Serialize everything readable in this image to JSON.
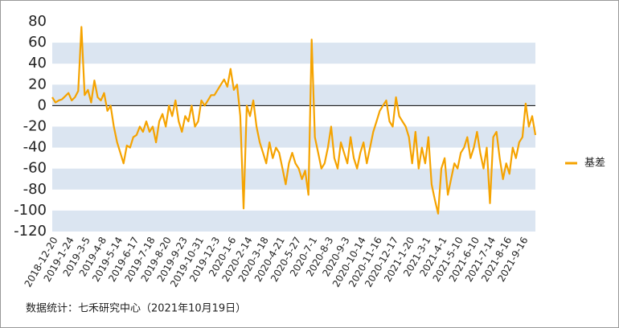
{
  "chart_data": {
    "type": "line",
    "categories": [
      "2018-12-20",
      null,
      null,
      null,
      null,
      "2019-1-24",
      null,
      null,
      null,
      null,
      "2019-3-5",
      null,
      null,
      null,
      null,
      "2019-4-8",
      null,
      null,
      null,
      null,
      "2019-5-14",
      null,
      null,
      null,
      null,
      "2019-6-17",
      null,
      null,
      null,
      null,
      "2019-7-18",
      null,
      null,
      null,
      null,
      "2019-8-20",
      null,
      null,
      null,
      null,
      "2019-9-23",
      null,
      null,
      null,
      null,
      "2019-10-31",
      null,
      null,
      null,
      null,
      "2019-12-3",
      null,
      null,
      null,
      null,
      "2020-1-6",
      null,
      null,
      null,
      null,
      "2020-2-14",
      null,
      null,
      null,
      null,
      "2020-3-18",
      null,
      null,
      null,
      null,
      "2020-4-21",
      null,
      null,
      null,
      null,
      "2020-5-27",
      null,
      null,
      null,
      null,
      "2020-7-1",
      null,
      null,
      null,
      null,
      "2020-8-3",
      null,
      null,
      null,
      null,
      "2020-9-3",
      null,
      null,
      null,
      null,
      "2020-10-14",
      null,
      null,
      null,
      null,
      "2020-11-16",
      null,
      null,
      null,
      null,
      "2020-12-17",
      null,
      null,
      null,
      null,
      "2021-1-20",
      null,
      null,
      null,
      null,
      "2021-3-1",
      null,
      null,
      null,
      null,
      "2021-4-1",
      null,
      null,
      null,
      null,
      "2021-5-10",
      null,
      null,
      null,
      null,
      "2021-6-10",
      null,
      null,
      null,
      null,
      "2021-7-14",
      null,
      null,
      null,
      null,
      "2021-8-16",
      null,
      null,
      null,
      null,
      "2021-9-16",
      null,
      null,
      null,
      null
    ],
    "series": [
      {
        "name": "基差",
        "color": "#f5a300",
        "values": [
          8,
          3,
          5,
          6,
          9,
          12,
          5,
          8,
          14,
          75,
          10,
          15,
          3,
          24,
          8,
          5,
          12,
          -5,
          0,
          -20,
          -35,
          -45,
          -55,
          -38,
          -40,
          -30,
          -28,
          -20,
          -25,
          -15,
          -25,
          -20,
          -35,
          -15,
          -8,
          -20,
          0,
          -10,
          5,
          -15,
          -25,
          -10,
          -15,
          0,
          -20,
          -15,
          5,
          0,
          5,
          10,
          10,
          15,
          20,
          25,
          18,
          35,
          15,
          20,
          -10,
          -98,
          0,
          -10,
          5,
          -20,
          -35,
          -45,
          -55,
          -35,
          -50,
          -40,
          -45,
          -60,
          -75,
          -55,
          -45,
          -55,
          -60,
          -70,
          -62,
          -85,
          63,
          -30,
          -45,
          -60,
          -55,
          -40,
          -20,
          -50,
          -60,
          -35,
          -45,
          -55,
          -30,
          -50,
          -60,
          -45,
          -35,
          -55,
          -40,
          -25,
          -15,
          -5,
          0,
          5,
          -15,
          -20,
          8,
          -10,
          -15,
          -20,
          -30,
          -55,
          -25,
          -60,
          -40,
          -55,
          -30,
          -75,
          -90,
          -103,
          -60,
          -50,
          -85,
          -70,
          -55,
          -60,
          -45,
          -40,
          -30,
          -50,
          -40,
          -25,
          -45,
          -60,
          -40,
          -93,
          -30,
          -25,
          -50,
          -70,
          -55,
          -65,
          -40,
          -50,
          -35,
          -30,
          2,
          -20,
          -10,
          -28
        ]
      }
    ],
    "ylim": [
      -120,
      80
    ],
    "yticks": [
      -120,
      -100,
      -80,
      -60,
      -40,
      -20,
      0,
      20,
      40,
      60,
      80
    ],
    "grid": "bands",
    "band_color": "#dbe5f1",
    "legend": "right",
    "source": "数据统计：七禾研究中心（2021年10月19日）"
  }
}
